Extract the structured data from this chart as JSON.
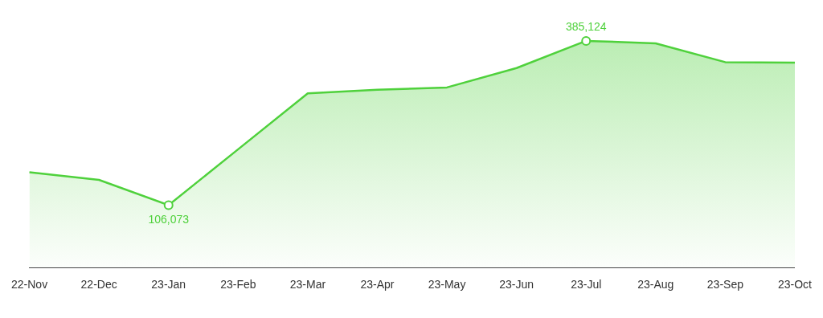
{
  "chart_data": {
    "type": "area",
    "categories": [
      "22-Nov",
      "22-Dec",
      "23-Jan",
      "23-Feb",
      "23-Mar",
      "23-Apr",
      "23-May",
      "23-Jun",
      "23-Jul",
      "23-Aug",
      "23-Sep",
      "23-Oct"
    ],
    "series": [
      {
        "color": "#4fd13c",
        "values": [
          162000,
          149000,
          106073,
          201000,
          296000,
          302000,
          306000,
          339000,
          385124,
          381000,
          349000,
          348000
        ],
        "value_labels": [
          null,
          null,
          "106,073",
          null,
          null,
          null,
          null,
          null,
          "385,124",
          null,
          null,
          null
        ]
      }
    ],
    "grid": false,
    "legend": false
  }
}
